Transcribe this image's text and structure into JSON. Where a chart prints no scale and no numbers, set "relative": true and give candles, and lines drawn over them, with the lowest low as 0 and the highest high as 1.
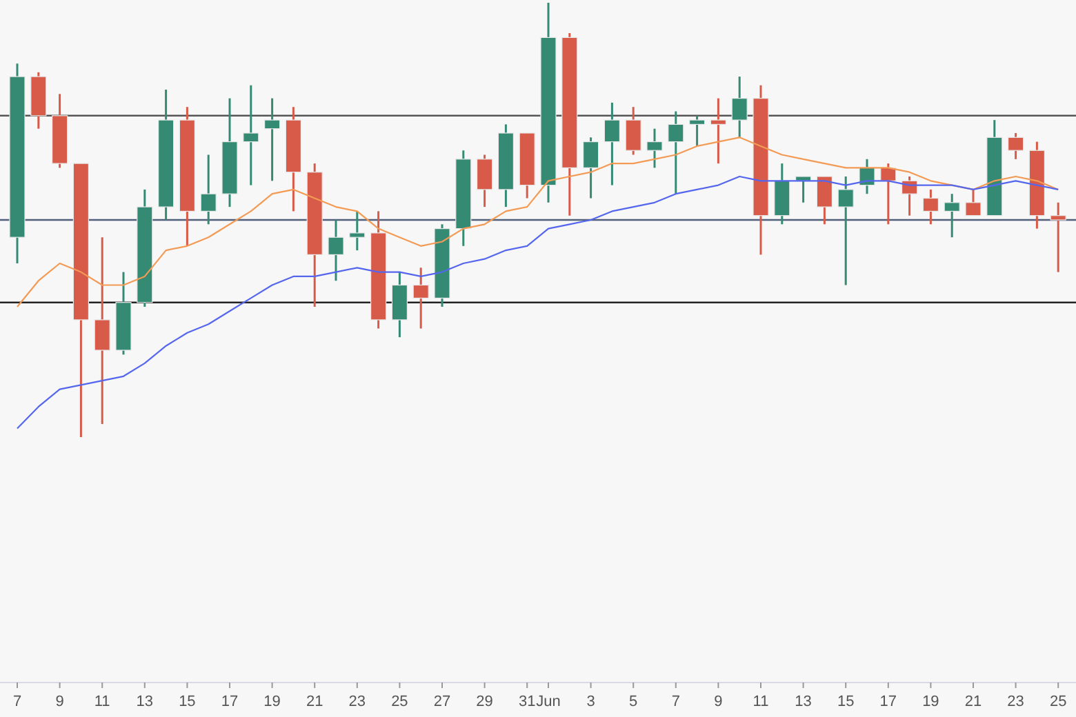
{
  "chart_data": {
    "type": "candlestick",
    "relative": true,
    "categories": [
      "7",
      null,
      "9",
      null,
      "11",
      null,
      "13",
      null,
      "15",
      null,
      "17",
      null,
      "19",
      null,
      "21",
      null,
      "23",
      null,
      "25",
      null,
      "27",
      null,
      "29",
      null,
      "31",
      "Jun",
      null,
      "3",
      null,
      "5",
      null,
      "7",
      null,
      "9",
      null,
      "11",
      null,
      "13",
      null,
      "15",
      null,
      "17",
      null,
      "19",
      null,
      "21",
      null,
      "23",
      null,
      "25"
    ],
    "ohlc": [
      [
        0.46,
        0.86,
        0.4,
        0.83
      ],
      [
        0.83,
        0.84,
        0.71,
        0.74
      ],
      [
        0.74,
        0.79,
        0.62,
        0.63
      ],
      [
        0.63,
        0.63,
        0,
        0.27
      ],
      [
        0.27,
        0.46,
        0.03,
        0.2
      ],
      [
        0.2,
        0.38,
        0.19,
        0.31
      ],
      [
        0.31,
        0.57,
        0.3,
        0.53
      ],
      [
        0.53,
        0.8,
        0.5,
        0.73
      ],
      [
        0.73,
        0.76,
        0.44,
        0.52
      ],
      [
        0.52,
        0.65,
        0.49,
        0.56
      ],
      [
        0.56,
        0.78,
        0.53,
        0.68
      ],
      [
        0.68,
        0.81,
        0.58,
        0.7
      ],
      [
        0.71,
        0.78,
        0.59,
        0.73
      ],
      [
        0.73,
        0.76,
        0.52,
        0.61
      ],
      [
        0.61,
        0.63,
        0.3,
        0.42
      ],
      [
        0.42,
        0.5,
        0.36,
        0.46
      ],
      [
        0.46,
        0.52,
        0.43,
        0.47
      ],
      [
        0.47,
        0.52,
        0.25,
        0.27
      ],
      [
        0.27,
        0.38,
        0.23,
        0.35
      ],
      [
        0.35,
        0.39,
        0.25,
        0.32
      ],
      [
        0.32,
        0.49,
        0.3,
        0.48
      ],
      [
        0.48,
        0.66,
        0.44,
        0.64
      ],
      [
        0.64,
        0.65,
        0.53,
        0.57
      ],
      [
        0.57,
        0.72,
        0.53,
        0.7
      ],
      [
        0.7,
        0.7,
        0.55,
        0.58
      ],
      [
        0.58,
        1,
        0.54,
        0.92
      ],
      [
        0.92,
        0.93,
        0.51,
        0.62
      ],
      [
        0.62,
        0.69,
        0.55,
        0.68
      ],
      [
        0.68,
        0.77,
        0.58,
        0.73
      ],
      [
        0.73,
        0.76,
        0.65,
        0.66
      ],
      [
        0.66,
        0.71,
        0.62,
        0.68
      ],
      [
        0.68,
        0.75,
        0.56,
        0.72
      ],
      [
        0.72,
        0.74,
        0.67,
        0.73
      ],
      [
        0.73,
        0.78,
        0.63,
        0.72
      ],
      [
        0.73,
        0.83,
        0.69,
        0.78
      ],
      [
        0.78,
        0.81,
        0.42,
        0.51
      ],
      [
        0.51,
        0.63,
        0.49,
        0.59
      ],
      [
        0.59,
        0.6,
        0.54,
        0.6
      ],
      [
        0.6,
        0.6,
        0.49,
        0.53
      ],
      [
        0.53,
        0.6,
        0.35,
        0.57
      ],
      [
        0.58,
        0.64,
        0.56,
        0.62
      ],
      [
        0.62,
        0.63,
        0.49,
        0.59
      ],
      [
        0.59,
        0.6,
        0.51,
        0.56
      ],
      [
        0.55,
        0.57,
        0.49,
        0.52
      ],
      [
        0.52,
        0.56,
        0.46,
        0.54
      ],
      [
        0.54,
        0.57,
        0.51,
        0.51
      ],
      [
        0.51,
        0.73,
        0.51,
        0.69
      ],
      [
        0.69,
        0.7,
        0.64,
        0.66
      ],
      [
        0.66,
        0.68,
        0.48,
        0.51
      ],
      [
        0.51,
        0.54,
        0.38,
        0.5
      ]
    ],
    "colors": [
      "#358a74",
      "#d75b48",
      "#d75b48",
      "#d75b48",
      "#d75b48",
      "#358a74",
      "#358a74",
      "#358a74",
      "#d75b48",
      "#358a74",
      "#358a74",
      "#358a74",
      "#358a74",
      "#d75b48",
      "#d75b48",
      "#358a74",
      "#358a74",
      "#d75b48",
      "#358a74",
      "#d75b48",
      "#358a74",
      "#358a74",
      "#d75b48",
      "#358a74",
      "#d75b48",
      "#358a74",
      "#d75b48",
      "#358a74",
      "#358a74",
      "#d75b48",
      "#358a74",
      "#358a74",
      "#358a74",
      "#d75b48",
      "#358a74",
      "#d75b48",
      "#358a74",
      "#358a74",
      "#d75b48",
      "#358a74",
      "#358a74",
      "#d75b48",
      "#d75b48",
      "#d75b48",
      "#358a74",
      "#d75b48",
      "#358a74",
      "#d75b48",
      "#d75b48",
      "#d75b48"
    ],
    "series": [
      {
        "type": "line",
        "color": "#f39a55",
        "values": [
          0.3,
          0.36,
          0.4,
          0.38,
          0.35,
          0.35,
          0.37,
          0.43,
          0.44,
          0.46,
          0.49,
          0.52,
          0.56,
          0.57,
          0.55,
          0.53,
          0.52,
          0.48,
          0.46,
          0.44,
          0.45,
          0.48,
          0.49,
          0.52,
          0.53,
          0.59,
          0.6,
          0.61,
          0.63,
          0.63,
          0.64,
          0.65,
          0.67,
          0.68,
          0.69,
          0.67,
          0.65,
          0.64,
          0.63,
          0.62,
          0.62,
          0.62,
          0.61,
          0.59,
          0.58,
          0.57,
          0.59,
          0.6,
          0.59,
          0.57
        ]
      },
      {
        "type": "line",
        "color": "#5566ee",
        "values": [
          0.02,
          0.07,
          0.11,
          0.12,
          0.13,
          0.14,
          0.17,
          0.21,
          0.24,
          0.26,
          0.29,
          0.32,
          0.35,
          0.37,
          0.37,
          0.38,
          0.39,
          0.38,
          0.38,
          0.37,
          0.38,
          0.4,
          0.41,
          0.43,
          0.44,
          0.48,
          0.49,
          0.5,
          0.52,
          0.53,
          0.54,
          0.56,
          0.57,
          0.58,
          0.6,
          0.59,
          0.59,
          0.59,
          0.59,
          0.58,
          0.59,
          0.59,
          0.58,
          0.58,
          0.58,
          0.57,
          0.58,
          0.59,
          0.58,
          0.57
        ]
      }
    ],
    "ref_lines": [
      {
        "axis": "y",
        "value": 0.74,
        "color": "#555555"
      },
      {
        "axis": "y",
        "value": 0.5,
        "color": "#50607a"
      },
      {
        "axis": "y",
        "value": 0.31,
        "color": "#222222"
      }
    ]
  }
}
